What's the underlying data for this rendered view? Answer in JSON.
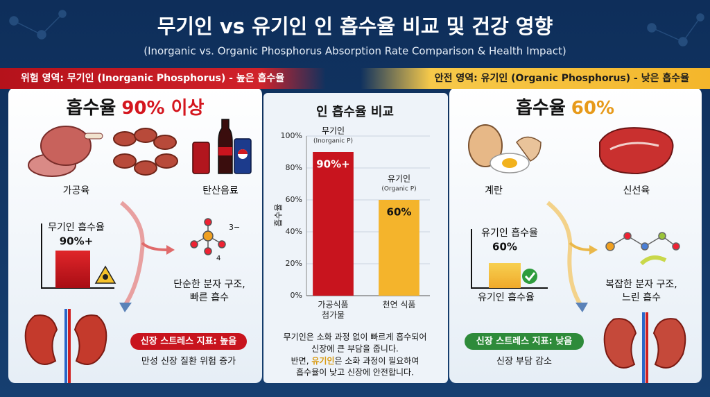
{
  "header": {
    "title": "무기인 vs 유기인 인 흡수율 비교 및 건강 영향",
    "subtitle": "(Inorganic vs. Organic Phosphorus Absorption Rate Comparison & Health Impact)"
  },
  "left_panel": {
    "banner": "위험 영역: 무기인 (Inorganic Phosphorus) - 높은 흡수율",
    "heading": [
      "흡수율",
      "90% 이상"
    ],
    "foods": [
      "가공육",
      "탄산음료"
    ],
    "mini_chart": {
      "title": "무기인 흡수율",
      "value": 90,
      "value_label": "90%+",
      "ylim": [
        0,
        100
      ]
    },
    "molecule": {
      "charge": "3−",
      "subscript": "4"
    },
    "structure": [
      "단순한 분자 구조,",
      "빠른 흡수"
    ],
    "kidney_badge": "신장 스트레스 지표: 높음",
    "kidney_note": "만성 신장 질환 위험 증가"
  },
  "right_panel": {
    "banner": "안전 영역: 유기인 (Organic Phosphorus) - 낮은 흡수율",
    "heading": [
      "흡수율",
      "60%"
    ],
    "foods": [
      "계란",
      "신선육"
    ],
    "mini_chart": {
      "title": "유기인 흡수율",
      "value": 60,
      "value_label": "60%",
      "axis_label": "유기인 흡수율",
      "ylim": [
        0,
        100
      ]
    },
    "structure": [
      "복잡한 분자 구조,",
      "느린 흡수"
    ],
    "kidney_badge": "신장 스트레스 지표: 낮음",
    "kidney_note": "신장 부담 감소"
  },
  "chart_data": {
    "type": "bar",
    "title": "인 흡수율 비교",
    "y_label": "흡수율",
    "categories": [
      "가공식품 첨가물",
      "천연 식품"
    ],
    "bar_names": [
      "무기인",
      "유기인"
    ],
    "bar_subnames": [
      "(Inorganic P)",
      "(Organic P)"
    ],
    "values": [
      90,
      60
    ],
    "value_labels": [
      "90%+",
      "60%"
    ],
    "colors": [
      "#c8141e",
      "#f4b42c"
    ],
    "ylim": [
      0,
      100
    ],
    "yticks": [
      {
        "value": 0,
        "label": "0%"
      },
      {
        "value": 20,
        "label": "20%"
      },
      {
        "value": 40,
        "label": "40%"
      },
      {
        "value": 60,
        "label": "60%"
      },
      {
        "value": 80,
        "label": "80%"
      },
      {
        "value": 100,
        "label": "100%"
      }
    ],
    "grid": true,
    "note": [
      "무기인은 소화 과정 없이 빠르게 흡수되어",
      "신장에 큰 부담을 줍니다.",
      [
        "반면, ",
        "유기인",
        "은 소화 과정이 필요하여"
      ],
      "흡수율이 낮고 신장에 안전합니다."
    ]
  }
}
